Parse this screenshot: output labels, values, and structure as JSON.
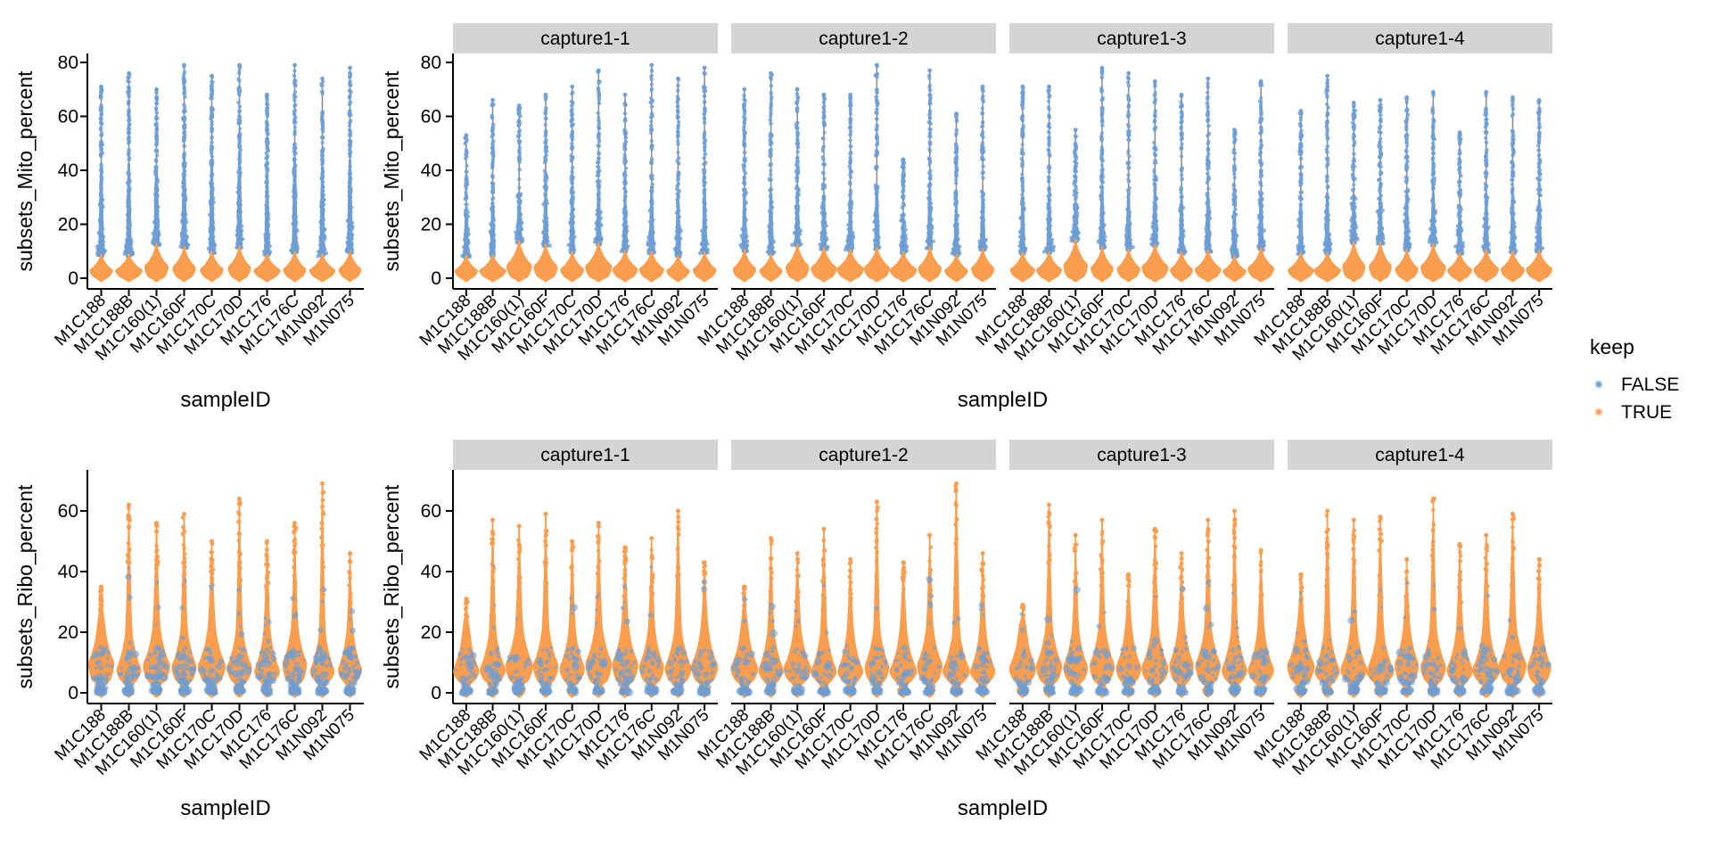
{
  "chart_data": {
    "type": "violin",
    "title": "",
    "xlabel": "sampleID",
    "samples": [
      "M1C188",
      "M1C188B",
      "M1C160(1)",
      "M1C160F",
      "M1C170C",
      "M1C170D",
      "M1C176",
      "M1C176C",
      "M1N092",
      "M1N075"
    ],
    "facet_labels": [
      "capture1-1",
      "capture1-2",
      "capture1-3",
      "capture1-4"
    ],
    "legend": {
      "title": "keep",
      "entries": [
        {
          "label": "FALSE",
          "color": "#6D9DD3"
        },
        {
          "label": "TRUE",
          "color": "#F89B4E"
        }
      ]
    },
    "colors": {
      "false_blue": "#6D9DD3",
      "true_orange": "#F99E4F",
      "stem_gray": "#8E8E8E",
      "strip_bg": "#D4D4D4",
      "axis": "#000000",
      "background": "#FFFFFF"
    },
    "mito_orange_top_percent": [
      9,
      9,
      13,
      12,
      10,
      12,
      9,
      10,
      9,
      10
    ],
    "ribo_body_peak_percent": 8,
    "rows": [
      {
        "ylabel": "subsets_Mito_percent",
        "yticks": [
          0,
          20,
          40,
          60,
          80
        ],
        "ylim": [
          0,
          80
        ],
        "plots": [
          {
            "facets": [
              {
                "label": null,
                "max_percent": [
                  71,
                  76,
                  70,
                  79,
                  75,
                  79,
                  68,
                  79,
                  74,
                  78
                ]
              }
            ]
          },
          {
            "facets": [
              {
                "label": "capture1-1",
                "max_percent": [
                  53,
                  66,
                  64,
                  68,
                  71,
                  77,
                  68,
                  79,
                  74,
                  78
                ]
              },
              {
                "label": "capture1-2",
                "max_percent": [
                  70,
                  76,
                  70,
                  68,
                  68,
                  79,
                  44,
                  77,
                  61,
                  71
                ]
              },
              {
                "label": "capture1-3",
                "max_percent": [
                  71,
                  71,
                  55,
                  78,
                  76,
                  73,
                  68,
                  74,
                  55,
                  73
                ]
              },
              {
                "label": "capture1-4",
                "max_percent": [
                  62,
                  75,
                  65,
                  66,
                  67,
                  69,
                  54,
                  69,
                  67,
                  66
                ]
              }
            ]
          }
        ]
      },
      {
        "ylabel": "subsets_Ribo_percent",
        "yticks": [
          0,
          20,
          40,
          60
        ],
        "ylim": [
          0,
          70
        ],
        "plots": [
          {
            "facets": [
              {
                "label": null,
                "max_percent": [
                  35,
                  62,
                  56,
                  59,
                  50,
                  64,
                  50,
                  56,
                  69,
                  46
                ]
              }
            ]
          },
          {
            "facets": [
              {
                "label": "capture1-1",
                "max_percent": [
                  31,
                  57,
                  55,
                  59,
                  50,
                  56,
                  48,
                  51,
                  60,
                  43
                ]
              },
              {
                "label": "capture1-2",
                "max_percent": [
                  35,
                  51,
                  46,
                  54,
                  44,
                  63,
                  43,
                  52,
                  69,
                  46
                ]
              },
              {
                "label": "capture1-3",
                "max_percent": [
                  29,
                  62,
                  52,
                  57,
                  39,
                  54,
                  46,
                  57,
                  60,
                  47
                ]
              },
              {
                "label": "capture1-4",
                "max_percent": [
                  39,
                  60,
                  57,
                  58,
                  44,
                  64,
                  49,
                  52,
                  59,
                  44
                ]
              }
            ]
          }
        ]
      }
    ]
  }
}
